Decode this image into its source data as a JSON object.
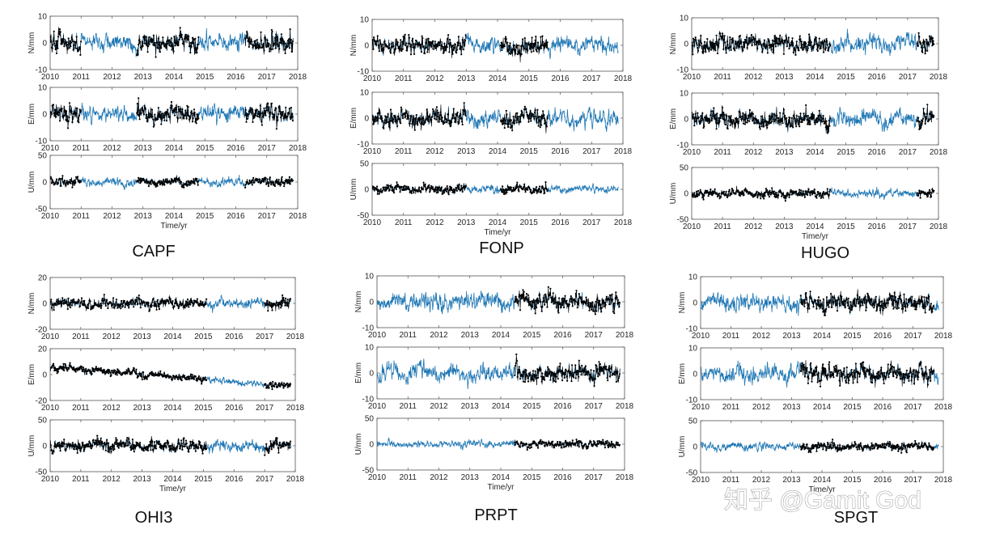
{
  "chart_data": [
    {
      "type": "line",
      "station": "CAPF",
      "xlabel": "Time/yr",
      "xlim": [
        2010,
        2018
      ],
      "x_ticks": [
        "2010",
        "2011",
        "2012",
        "2013",
        "2014",
        "2015",
        "2016",
        "2017",
        "2018"
      ],
      "series_colors": {
        "model": "#1f77b4",
        "observed": "#000000"
      },
      "observed_intervals": [
        [
          2010.0,
          2011.0
        ],
        [
          2012.8,
          2014.8
        ],
        [
          2016.3,
          2017.85
        ]
      ],
      "model_span": [
        2010.0,
        2017.85
      ],
      "panels": [
        {
          "ylabel": "N/mm",
          "ylim": [
            -10,
            10
          ],
          "y_ticks": [
            "10",
            "0",
            "-10"
          ],
          "amplitude": 2.5,
          "trend": [
            0,
            0
          ]
        },
        {
          "ylabel": "E/mm",
          "ylim": [
            -10,
            10
          ],
          "y_ticks": [
            "10",
            "0",
            "-10"
          ],
          "amplitude": 2.5,
          "trend": [
            0,
            0
          ]
        },
        {
          "ylabel": "U/mm",
          "ylim": [
            -50,
            50
          ],
          "y_ticks": [
            "50",
            "0",
            "-50"
          ],
          "amplitude": 6,
          "trend": [
            0,
            0
          ]
        }
      ]
    },
    {
      "type": "line",
      "station": "FONP",
      "xlabel": "Time/yr",
      "xlim": [
        2010,
        2018
      ],
      "x_ticks": [
        "2010",
        "2011",
        "2012",
        "2013",
        "2014",
        "2015",
        "2016",
        "2017",
        "2018"
      ],
      "series_colors": {
        "model": "#1f77b4",
        "observed": "#000000"
      },
      "observed_intervals": [
        [
          2010.0,
          2013.0
        ],
        [
          2014.1,
          2015.6
        ]
      ],
      "model_span": [
        2010.0,
        2017.85
      ],
      "panels": [
        {
          "ylabel": "N/mm",
          "ylim": [
            -10,
            10
          ],
          "y_ticks": [
            "10",
            "0",
            "-10"
          ],
          "amplitude": 2.5,
          "trend": [
            0,
            0
          ]
        },
        {
          "ylabel": "E/mm",
          "ylim": [
            -10,
            10
          ],
          "y_ticks": [
            "10",
            "0",
            "-10"
          ],
          "amplitude": 2.5,
          "trend": [
            0,
            0
          ]
        },
        {
          "ylabel": "U/mm",
          "ylim": [
            -50,
            50
          ],
          "y_ticks": [
            "50",
            "0",
            "-50"
          ],
          "amplitude": 6,
          "trend": [
            0,
            0
          ]
        }
      ]
    },
    {
      "type": "line",
      "station": "HUGO",
      "xlabel": "Time/yr",
      "xlim": [
        2010,
        2018
      ],
      "x_ticks": [
        "2010",
        "2011",
        "2012",
        "2013",
        "2014",
        "2015",
        "2016",
        "2017",
        "2018"
      ],
      "series_colors": {
        "model": "#1f77b4",
        "observed": "#000000"
      },
      "observed_intervals": [
        [
          2010.0,
          2014.5
        ],
        [
          2017.3,
          2017.85
        ]
      ],
      "model_span": [
        2010.0,
        2017.85
      ],
      "panels": [
        {
          "ylabel": "N/mm",
          "ylim": [
            -10,
            10
          ],
          "y_ticks": [
            "10",
            "0",
            "-10"
          ],
          "amplitude": 2.5,
          "trend": [
            0,
            0
          ]
        },
        {
          "ylabel": "E/mm",
          "ylim": [
            -10,
            10
          ],
          "y_ticks": [
            "10",
            "0",
            "-10"
          ],
          "amplitude": 2.5,
          "trend": [
            0,
            0
          ]
        },
        {
          "ylabel": "U/mm",
          "ylim": [
            -50,
            50
          ],
          "y_ticks": [
            "50",
            "0",
            "-50"
          ],
          "amplitude": 6,
          "trend": [
            0,
            0
          ]
        }
      ]
    },
    {
      "type": "line",
      "station": "OHI3",
      "xlabel": "Time/yr",
      "xlim": [
        2010,
        2018
      ],
      "x_ticks": [
        "2010",
        "2011",
        "2012",
        "2013",
        "2014",
        "2015",
        "2016",
        "2017",
        "2018"
      ],
      "series_colors": {
        "model": "#1f77b4",
        "observed": "#000000"
      },
      "observed_intervals": [
        [
          2010.0,
          2015.1
        ],
        [
          2017.0,
          2017.85
        ]
      ],
      "model_span": [
        2010.0,
        2017.85
      ],
      "panels": [
        {
          "ylabel": "N/mm",
          "ylim": [
            -20,
            20
          ],
          "y_ticks": [
            "20",
            "0",
            "-20"
          ],
          "amplitude": 3,
          "trend": [
            0,
            0
          ]
        },
        {
          "ylabel": "E/mm",
          "ylim": [
            -20,
            20
          ],
          "y_ticks": [
            "20",
            "0",
            "-20"
          ],
          "amplitude": 2,
          "trend": [
            6,
            -9
          ]
        },
        {
          "ylabel": "U/mm",
          "ylim": [
            -50,
            50
          ],
          "y_ticks": [
            "50",
            "0",
            "-50"
          ],
          "amplitude": 9,
          "trend": [
            0,
            0
          ]
        }
      ]
    },
    {
      "type": "line",
      "station": "PRPT",
      "xlabel": "Time/yr",
      "xlim": [
        2010,
        2018
      ],
      "x_ticks": [
        "2010",
        "2011",
        "2012",
        "2013",
        "2014",
        "2015",
        "2016",
        "2017",
        "2018"
      ],
      "series_colors": {
        "model": "#1f77b4",
        "observed": "#000000"
      },
      "observed_intervals": [
        [
          2014.45,
          2017.85
        ]
      ],
      "model_span": [
        2010.0,
        2017.85
      ],
      "panels": [
        {
          "ylabel": "N/mm",
          "ylim": [
            -10,
            10
          ],
          "y_ticks": [
            "10",
            "0",
            "-10"
          ],
          "amplitude": 2.5,
          "trend": [
            0,
            0
          ]
        },
        {
          "ylabel": "E/mm",
          "ylim": [
            -10,
            10
          ],
          "y_ticks": [
            "10",
            "0",
            "-10"
          ],
          "amplitude": 2.5,
          "trend": [
            0,
            0
          ]
        },
        {
          "ylabel": "U/mm",
          "ylim": [
            -50,
            50
          ],
          "y_ticks": [
            "50",
            "0",
            "-50"
          ],
          "amplitude": 5,
          "trend": [
            0,
            0
          ]
        }
      ]
    },
    {
      "type": "line",
      "station": "SPGT",
      "xlabel": "Time/yr",
      "xlim": [
        2010,
        2018
      ],
      "x_ticks": [
        "2010",
        "2011",
        "2012",
        "2013",
        "2014",
        "2015",
        "2016",
        "2017",
        "2018"
      ],
      "series_colors": {
        "model": "#1f77b4",
        "observed": "#000000"
      },
      "observed_intervals": [
        [
          2013.3,
          2017.7
        ]
      ],
      "model_span": [
        2010.0,
        2017.85
      ],
      "panels": [
        {
          "ylabel": "N/mm",
          "ylim": [
            -10,
            10
          ],
          "y_ticks": [
            "10",
            "0",
            "-10"
          ],
          "amplitude": 2.5,
          "trend": [
            0,
            0
          ]
        },
        {
          "ylabel": "E/mm",
          "ylim": [
            -10,
            10
          ],
          "y_ticks": [
            "10",
            "0",
            "-10"
          ],
          "amplitude": 2.5,
          "trend": [
            0,
            0
          ]
        },
        {
          "ylabel": "U/mm",
          "ylim": [
            -50,
            50
          ],
          "y_ticks": [
            "50",
            "0",
            "-50"
          ],
          "amplitude": 6,
          "trend": [
            0,
            0
          ]
        }
      ]
    }
  ],
  "watermark": "知乎 @Gamit God"
}
